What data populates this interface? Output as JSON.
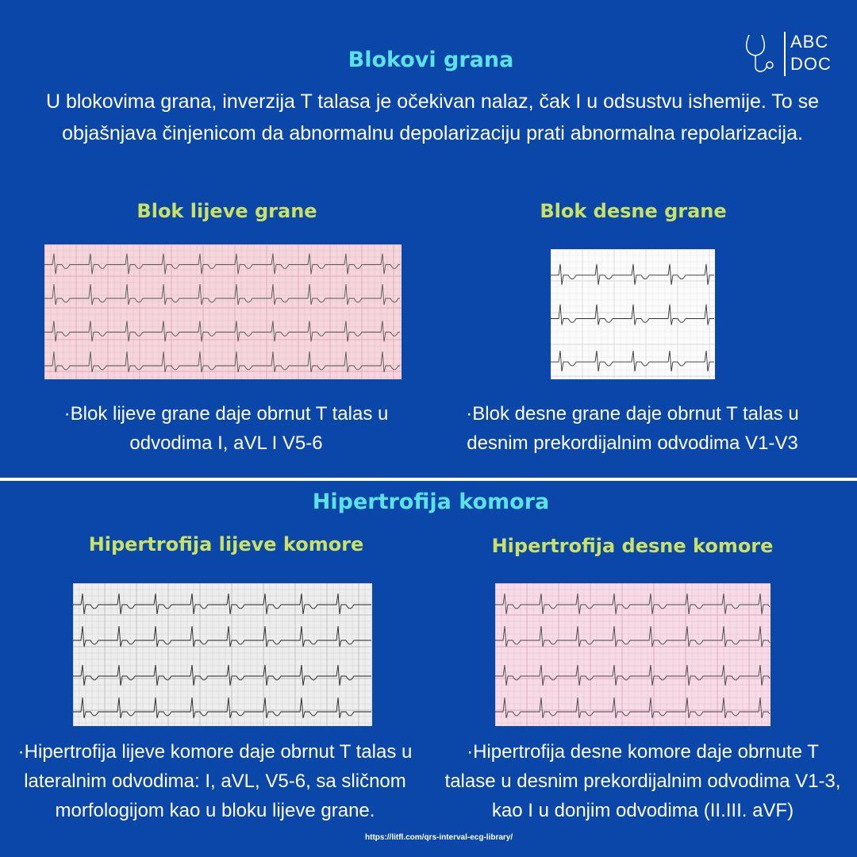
{
  "logo": {
    "line1": "ABC",
    "line2": "DOC"
  },
  "section1": {
    "title": "Blokovi grana",
    "intro": "U blokovima grana, inverzija T talasa je očekivan nalaz, čak I u odsustvu ishemije. To se objašnjava činjenicom da abnormalnu depolarizaciju prati abnormalna repolarizacija.",
    "left": {
      "heading": "Blok lijeve grane",
      "text": "·Blok lijeve grane daje obrnut T talas u odvodima I, aVL I V5-6"
    },
    "right": {
      "heading": "Blok desne grane",
      "text": "·Blok desne grane daje obrnut T talas u desnim prekordijalnim odvodima V1-V3"
    }
  },
  "section2": {
    "title": "Hipertrofija komora",
    "left": {
      "heading": "Hipertrofija lijeve komore",
      "text": "·Hipertrofija lijeve komore daje obrnut T talas u lateralnim odvodima: I, aVL, V5-6, sa sličnom morfologijom kao u bloku lijeve grane."
    },
    "right": {
      "heading": "Hipertrofija desne komore",
      "text": "·Hipertrofija desne komore daje obrnute T talase u desnim prekordijalnim odvodima V1-3, kao I u donjim odvodima (II.III. aVF)"
    }
  },
  "source": "https://litfl.com/qrs-interval-ecg-library/"
}
